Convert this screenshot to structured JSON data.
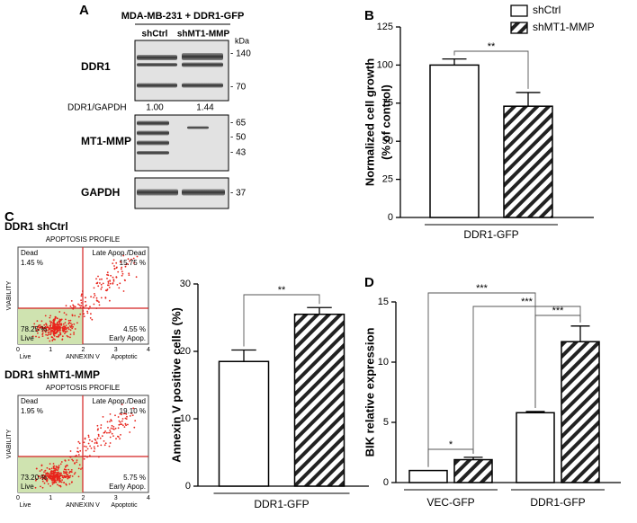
{
  "panel_labels": [
    "A",
    "B",
    "C",
    "D"
  ],
  "blot": {
    "title": "MDA-MB-231 + DDR1-GFP",
    "lanes": [
      "shCtrl",
      "shMT1-MMP"
    ],
    "unit": "kDa",
    "rows": [
      {
        "name": "DDR1",
        "markers": [
          "- 140",
          "- 70"
        ]
      },
      {
        "name": "MT1-MMP",
        "markers": [
          "- 65",
          "- 50",
          "- 43"
        ]
      },
      {
        "name": "GAPDH",
        "markers": [
          "- 37"
        ]
      }
    ],
    "ratio": {
      "label": "DDR1/GAPDH",
      "values": [
        "1.00",
        "1.44"
      ]
    }
  },
  "flow_panels": [
    {
      "title": "DDR1 shCtrl",
      "header": "APOPTOSIS PROFILE",
      "ylabel": "VIABILITY",
      "xlabel": "ANNEXIN V",
      "x_ends": [
        "Live",
        "Apoptotic"
      ],
      "ticks": [
        "0",
        "1",
        "2",
        "3",
        "4"
      ],
      "quadrants": {
        "dead": "Dead",
        "dead_pct": "1.45 %",
        "late": "Late Apop./Dead",
        "late_pct": "15.75 %",
        "live": "Live",
        "live_pct": "78.25 %",
        "early": "Early Apop.",
        "early_pct": "4.55 %"
      }
    },
    {
      "title": "DDR1 shMT1-MMP",
      "header": "APOPTOSIS PROFILE",
      "ylabel": "VIABILITY",
      "xlabel": "ANNEXIN V",
      "x_ends": [
        "Live",
        "Apoptotic"
      ],
      "ticks": [
        "0",
        "1",
        "2",
        "3",
        "4"
      ],
      "quadrants": {
        "dead": "Dead",
        "dead_pct": "1.95 %",
        "late": "Late Apop./Dead",
        "late_pct": "19.10 %",
        "live": "Live",
        "live_pct": "73.20 %",
        "early": "Early Apop.",
        "early_pct": "5.75 %"
      }
    }
  ],
  "chart_data": [
    {
      "type": "bar",
      "ylabel": [
        "Normalized cell growth",
        "(% of control)"
      ],
      "categories": [
        "DDR1-GFP"
      ],
      "series": [
        {
          "name": "shCtrl",
          "color": "#ffffff",
          "pattern": "none",
          "values": [
            100
          ],
          "errors": [
            4
          ]
        },
        {
          "name": "shMT1-MMP",
          "color": "#ffffff",
          "pattern": "hatch",
          "values": [
            73
          ],
          "errors": [
            9
          ]
        }
      ],
      "ylim": [
        0,
        125
      ],
      "yticks": [
        0,
        25,
        50,
        75,
        100,
        125
      ],
      "legend": "top-right",
      "annotations": [
        "**"
      ]
    },
    {
      "type": "bar",
      "ylabel": [
        "Annexin V positive cells (%)"
      ],
      "categories": [
        "DDR1-GFP"
      ],
      "series": [
        {
          "name": "shCtrl",
          "color": "#ffffff",
          "pattern": "none",
          "values": [
            18.5
          ],
          "errors": [
            1.7
          ]
        },
        {
          "name": "shMT1-MMP",
          "color": "#ffffff",
          "pattern": "hatch",
          "values": [
            25.5
          ],
          "errors": [
            1.0
          ]
        }
      ],
      "ylim": [
        0,
        30
      ],
      "yticks": [
        0,
        10,
        20,
        30
      ],
      "legend": "none",
      "annotations": [
        "**"
      ]
    },
    {
      "type": "bar",
      "ylabel": [
        "BIK relative expression"
      ],
      "categories": [
        "VEC-GFP",
        "DDR1-GFP"
      ],
      "series": [
        {
          "name": "shCtrl",
          "color": "#ffffff",
          "pattern": "none",
          "values": [
            1.0,
            5.8
          ],
          "errors": [
            0,
            0.1
          ]
        },
        {
          "name": "shMT1-MMP",
          "color": "#ffffff",
          "pattern": "hatch",
          "values": [
            1.9,
            11.7
          ],
          "errors": [
            0.2,
            1.3
          ]
        }
      ],
      "ylim": [
        0,
        15
      ],
      "yticks": [
        0,
        5,
        10,
        15
      ],
      "legend": "none",
      "annotations": [
        "*",
        "***",
        "***",
        "***"
      ]
    }
  ]
}
